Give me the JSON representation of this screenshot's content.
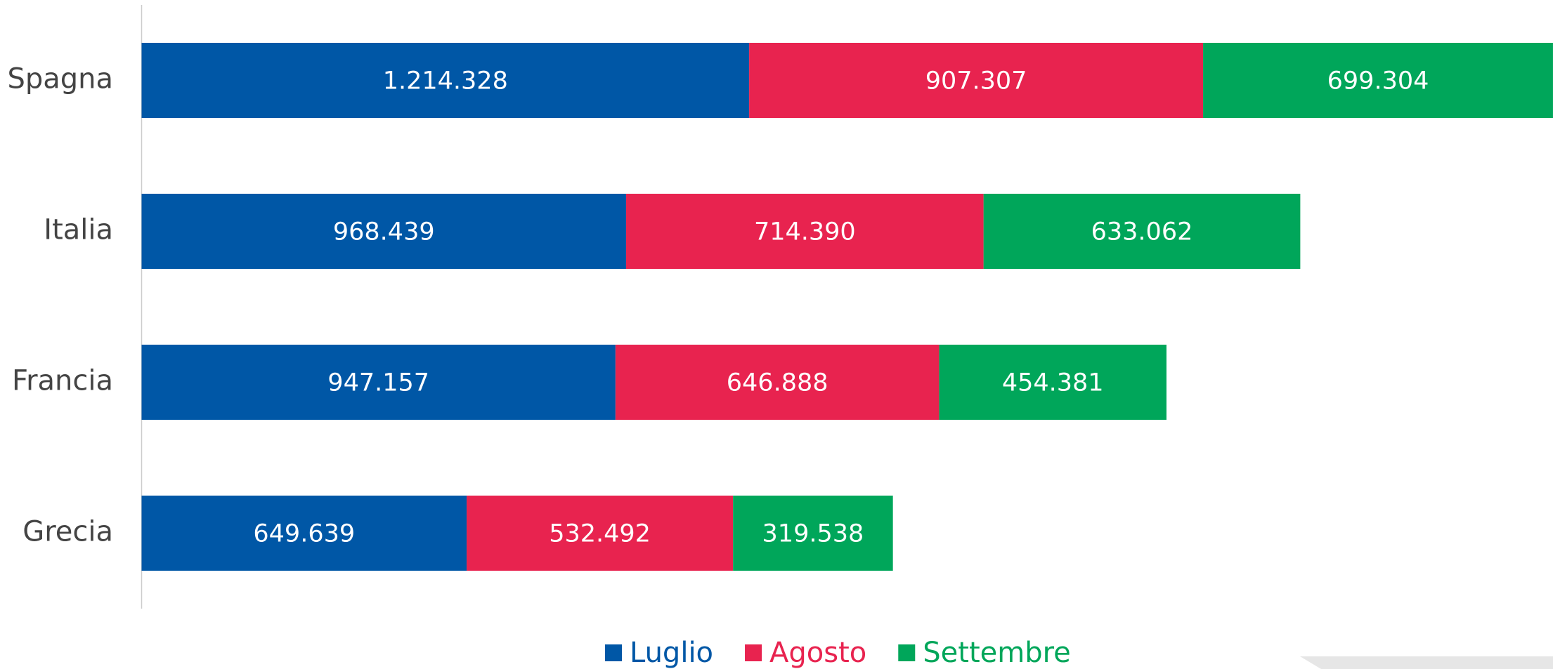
{
  "chart_data": {
    "type": "stacked-barh",
    "categories": [
      "Spagna",
      "Italia",
      "Francia",
      "Grecia"
    ],
    "series": [
      {
        "name": "Luglio",
        "color": "#0057a6",
        "values": [
          1214328,
          968439,
          947157,
          649639
        ],
        "value_labels": [
          "1.214.328",
          "968.439",
          "947.157",
          "649.639"
        ]
      },
      {
        "name": "Agosto",
        "color": "#e8234f",
        "values": [
          907307,
          714390,
          646888,
          532492
        ],
        "value_labels": [
          "907.307",
          "714.390",
          "646.888",
          "532.492"
        ]
      },
      {
        "name": "Settembre",
        "color": "#00a65a",
        "values": [
          699304,
          633062,
          454381,
          319538
        ],
        "value_labels": [
          "699.304",
          "633.062",
          "454.381",
          "319.538"
        ]
      }
    ],
    "xlim": [
      0,
      2821000
    ],
    "legend": "bottom"
  }
}
